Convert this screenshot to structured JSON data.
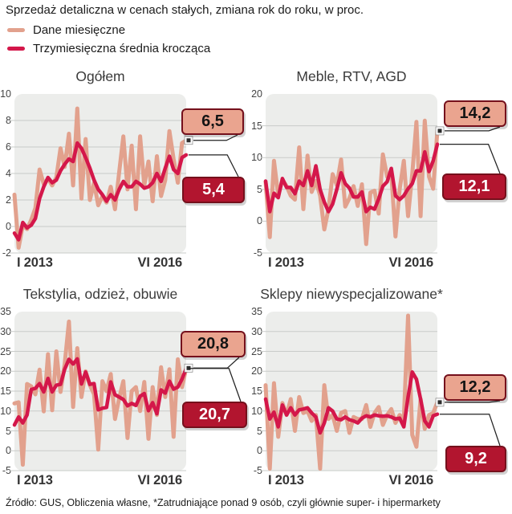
{
  "header": {
    "title": "Sprzedaż detaliczna w cenach stałych, zmiana rok do roku, w proc.",
    "legend": [
      {
        "label": "Dane miesięczne",
        "color": "#E2A18D"
      },
      {
        "label": "Trzymiesięczna średnia krocząca",
        "color": "#D4174A"
      }
    ]
  },
  "footer": {
    "source": "Źródło: GUS, Obliczenia własne, *Zatrudniające ponad 9 osób, czyli głównie super- i hipermarkety"
  },
  "colors": {
    "monthly_line": "#E2A18D",
    "average_line": "#D4174A",
    "plot_panel": "#ECEDEB",
    "gridline": "#C9CCC9",
    "callout_monthly_bg": "#EAA48F",
    "callout_avg_bg": "#B2152F",
    "callout_border": "#75101C",
    "callout_monthly_text": "#141414",
    "callout_avg_text": "#FFFFFF",
    "connector": "#222222",
    "marker_fill": "#2D2D2D",
    "marker_border": "#FFFFFF"
  },
  "chart_data": [
    {
      "type": "line",
      "title": "Ogółem",
      "x_ticks": [
        "I 2013",
        "VI 2016"
      ],
      "x_points": 42,
      "ylim": [
        -2,
        10
      ],
      "yticks": [
        10,
        8,
        6,
        4,
        2,
        0,
        -2
      ],
      "grid": true,
      "series": [
        {
          "name": "Dane miesięczne",
          "color": "#E2A18D",
          "end_label": "6,5",
          "values": [
            2.4,
            -1.6,
            0.1,
            -0.2,
            0.5,
            1.4,
            4.3,
            3.2,
            3.6,
            3.1,
            3.7,
            5.9,
            4.5,
            7.0,
            3.1,
            8.9,
            2.1,
            6.6,
            2.0,
            3.3,
            1.6,
            2.3,
            1.8,
            3.0,
            1.3,
            4.1,
            6.8,
            2.8,
            6.1,
            1.3,
            6.8,
            3.1,
            4.9,
            1.9,
            5.3,
            2.3,
            3.5,
            7.2,
            5.1,
            3.3,
            6.3,
            6.5
          ]
        },
        {
          "name": "Trzymiesięczna średnia krocząca",
          "color": "#D4174A",
          "end_label": "5,4",
          "values": [
            -0.5,
            -1.0,
            0.3,
            -0.1,
            0.1,
            0.6,
            2.1,
            3.0,
            3.7,
            3.3,
            3.5,
            4.2,
            4.7,
            5.1,
            4.9,
            6.3,
            5.9,
            5.2,
            4.4,
            3.5,
            2.8,
            2.4,
            1.9,
            2.4,
            2.0,
            2.8,
            3.4,
            3.0,
            3.0,
            3.4,
            3.2,
            2.9,
            3.0,
            3.3,
            4.0,
            3.4,
            4.4,
            5.3,
            4.3,
            4.0,
            5.2,
            5.4
          ]
        }
      ]
    },
    {
      "type": "line",
      "title": "Meble, RTV, AGD",
      "x_ticks": [
        "I 2013",
        "VI 2016"
      ],
      "x_points": 42,
      "ylim": [
        -5,
        20
      ],
      "yticks": [
        20,
        15,
        10,
        5,
        0,
        -5
      ],
      "grid": true,
      "series": [
        {
          "name": "Dane miesięczne",
          "color": "#E2A18D",
          "end_label": "14,2",
          "values": [
            6.2,
            -2.5,
            9.5,
            4.0,
            6.5,
            5.5,
            4.0,
            3.4,
            11.6,
            1.9,
            10.3,
            4.6,
            6.3,
            4.0,
            -1.3,
            1.9,
            7.4,
            5.7,
            9.7,
            2.3,
            3.6,
            5.5,
            2.4,
            5.8,
            -3.6,
            4.5,
            4.8,
            1.2,
            10.5,
            7.0,
            7.5,
            -2.4,
            5.0,
            9.5,
            0.8,
            7.4,
            15.6,
            0.8,
            15.8,
            7.0,
            5.1,
            14.2
          ]
        },
        {
          "name": "Trzymiesięczna średnia krocząca",
          "color": "#D4174A",
          "end_label": "12,1",
          "values": [
            6.3,
            1.5,
            4.4,
            3.7,
            6.7,
            5.3,
            5.3,
            4.3,
            6.3,
            5.6,
            7.9,
            5.6,
            8.7,
            5.0,
            3.0,
            1.5,
            2.7,
            5.0,
            7.6,
            5.9,
            5.2,
            3.8,
            3.8,
            4.6,
            1.5,
            2.2,
            1.9,
            3.5,
            5.5,
            6.2,
            8.3,
            4.0,
            3.4,
            4.0,
            5.1,
            5.9,
            7.9,
            7.9,
            10.9,
            7.8,
            9.5,
            12.1
          ]
        }
      ]
    },
    {
      "type": "line",
      "title": "Tekstylia, odzież, obuwie",
      "x_ticks": [
        "I 2013",
        "VI 2016"
      ],
      "x_points": 42,
      "ylim": [
        -5,
        35
      ],
      "yticks": [
        35,
        30,
        25,
        20,
        15,
        10,
        5,
        0,
        -5
      ],
      "grid": true,
      "series": [
        {
          "name": "Dane miesięczne",
          "color": "#E2A18D",
          "end_label": "20,8",
          "values": [
            11.9,
            12.2,
            -3.5,
            16.8,
            16.2,
            14.2,
            20.4,
            9.9,
            24.3,
            10.2,
            25.0,
            14.8,
            21.8,
            32.5,
            11.0,
            25.8,
            13.5,
            20.0,
            16.5,
            14.2,
            0.3,
            17.5,
            15.0,
            19.3,
            8.0,
            13.2,
            17.5,
            3.2,
            15.0,
            16.0,
            10.0,
            17.3,
            3.0,
            16.0,
            9.0,
            21.0,
            13.5,
            20.5,
            3.5,
            23.0,
            16.0,
            20.8
          ]
        },
        {
          "name": "Trzymiesięczna średnia krocząca",
          "color": "#D4174A",
          "end_label": "20,7",
          "values": [
            6.5,
            8.5,
            7.0,
            9.0,
            15.4,
            15.7,
            16.9,
            14.8,
            18.2,
            14.8,
            16.5,
            16.7,
            20.5,
            23.0,
            21.8,
            23.1,
            16.8,
            19.8,
            16.7,
            16.9,
            10.3,
            10.7,
            10.9,
            17.3,
            14.1,
            13.5,
            12.9,
            11.3,
            11.9,
            11.4,
            13.7,
            14.4,
            10.1,
            12.1,
            9.3,
            15.3,
            14.5,
            17.5,
            15.5,
            16.0,
            18.0,
            20.7
          ]
        }
      ]
    },
    {
      "type": "line",
      "title": "Sklepy niewyspecjalizowane*",
      "x_ticks": [
        "I 2013",
        "VI 2016"
      ],
      "x_points": 42,
      "ylim": [
        -5,
        35
      ],
      "yticks": [
        35,
        30,
        25,
        20,
        15,
        10,
        5,
        0,
        -5
      ],
      "grid": true,
      "series": [
        {
          "name": "Dane miesięczne",
          "color": "#E2A18D",
          "end_label": "12,2",
          "values": [
            16.5,
            -4.5,
            17.0,
            3.5,
            12.0,
            9.0,
            13.0,
            5.0,
            13.5,
            9.5,
            10.0,
            7.5,
            9.0,
            -4.5,
            16.5,
            8.0,
            9.0,
            5.0,
            9.5,
            10.0,
            4.5,
            8.5,
            8.0,
            8.0,
            11.5,
            6.0,
            9.5,
            11.0,
            6.5,
            9.0,
            10.5,
            7.0,
            9.0,
            8.0,
            34.0,
            4.0,
            1.0,
            13.0,
            5.5,
            9.0,
            9.5,
            12.2
          ]
        },
        {
          "name": "Trzymiesięczna średnia krocząca",
          "color": "#D4174A",
          "end_label": "9,2",
          "values": [
            13.0,
            8.0,
            9.7,
            6.0,
            11.5,
            9.0,
            10.8,
            9.0,
            10.3,
            10.5,
            10.8,
            9.5,
            8.5,
            4.5,
            7.0,
            10.8,
            10.0,
            8.0,
            7.8,
            8.5,
            7.8,
            7.5,
            7.0,
            8.2,
            8.8,
            8.5,
            9.0,
            8.8,
            8.7,
            8.8,
            8.5,
            8.0,
            8.2,
            6.0,
            13.5,
            19.8,
            18.0,
            13.0,
            7.5,
            6.0,
            8.8,
            9.2
          ]
        }
      ]
    }
  ]
}
